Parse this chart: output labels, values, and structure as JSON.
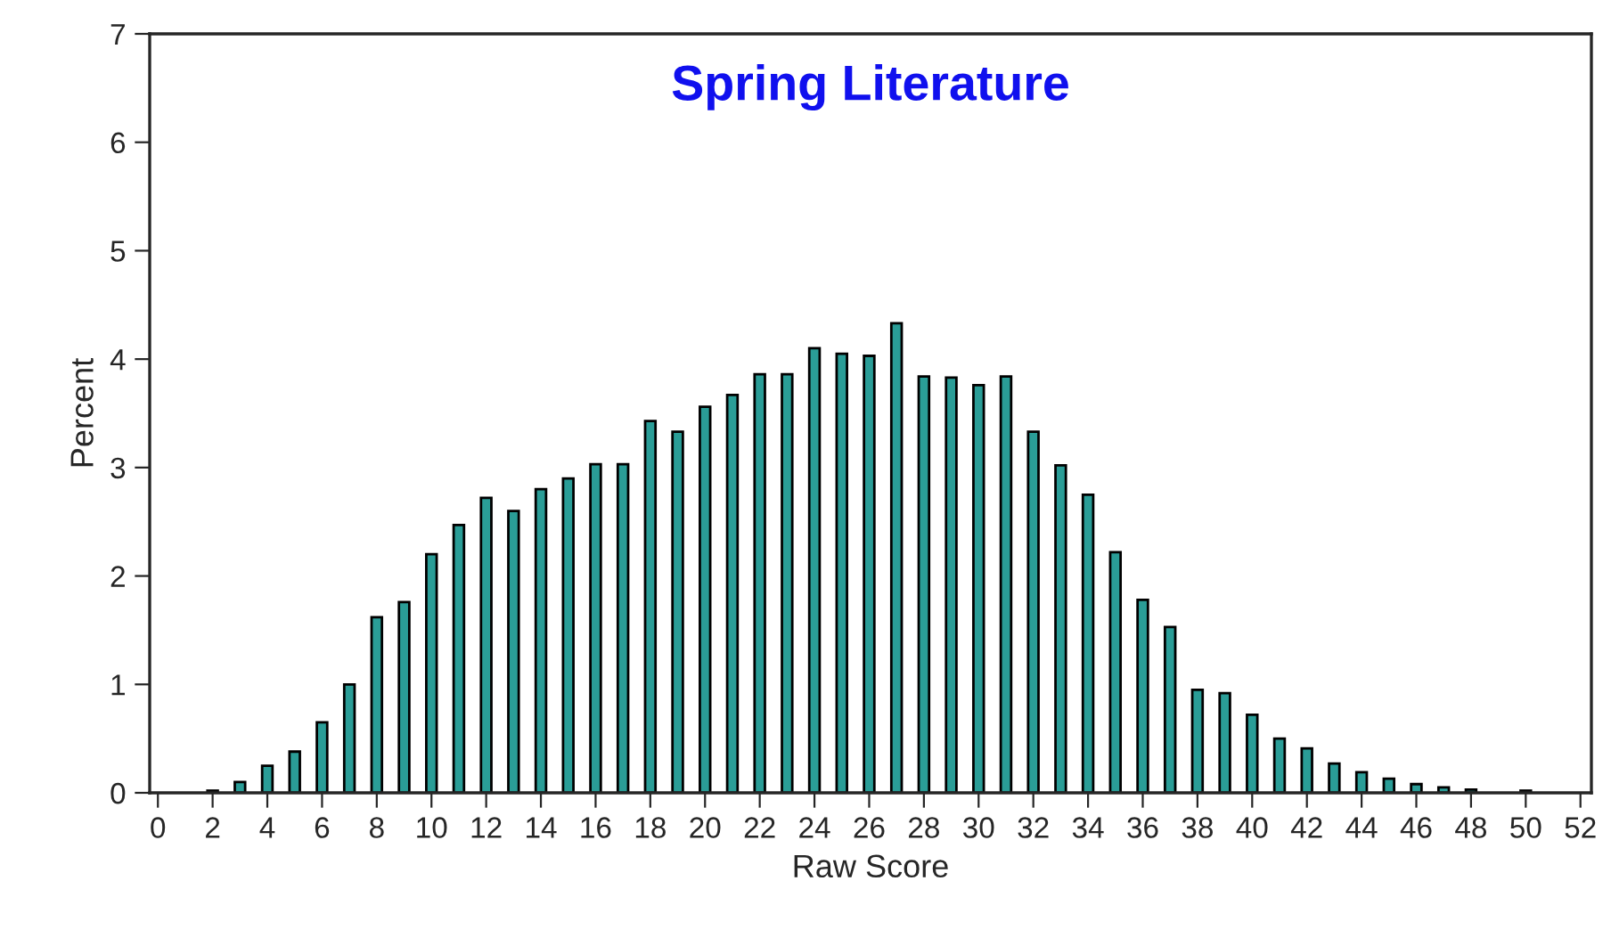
{
  "chart_data": {
    "type": "bar",
    "title": "Spring Literature",
    "xlabel": "Raw Score",
    "ylabel": "Percent",
    "x": [
      2,
      3,
      4,
      5,
      6,
      7,
      8,
      9,
      10,
      11,
      12,
      13,
      14,
      15,
      16,
      17,
      18,
      19,
      20,
      21,
      22,
      23,
      24,
      25,
      26,
      27,
      28,
      29,
      30,
      31,
      32,
      33,
      34,
      35,
      36,
      37,
      38,
      39,
      40,
      41,
      42,
      43,
      44,
      45,
      46,
      47,
      48,
      49,
      50
    ],
    "values": [
      0.02,
      0.1,
      0.25,
      0.38,
      0.65,
      1.0,
      1.62,
      1.76,
      2.2,
      2.47,
      2.72,
      2.6,
      2.8,
      2.9,
      3.03,
      3.03,
      3.43,
      3.33,
      3.56,
      3.67,
      3.86,
      3.86,
      4.1,
      4.05,
      4.03,
      4.33,
      3.84,
      3.83,
      3.76,
      3.84,
      3.33,
      3.02,
      2.75,
      2.22,
      1.78,
      1.53,
      0.95,
      0.92,
      0.72,
      0.5,
      0.41,
      0.27,
      0.19,
      0.13,
      0.08,
      0.05,
      0.03,
      null,
      0.02
    ],
    "color": "#2a9d97",
    "xlim": [
      -0.3,
      52.4
    ],
    "xticks": [
      0,
      2,
      4,
      6,
      8,
      10,
      12,
      14,
      16,
      18,
      20,
      22,
      24,
      26,
      28,
      30,
      32,
      34,
      36,
      38,
      40,
      42,
      44,
      46,
      48,
      50,
      52
    ],
    "ylim": [
      0,
      7
    ],
    "yticks": [
      0,
      1,
      2,
      3,
      4,
      5,
      6,
      7
    ],
    "grid": false
  }
}
